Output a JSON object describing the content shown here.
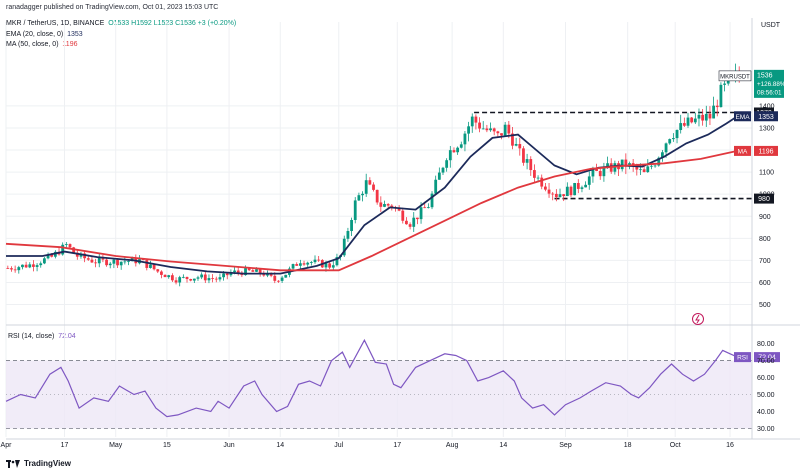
{
  "header": {
    "publisher": "ranadagger published on TradingView.com, Oct 01, 2023 15:03 UTC",
    "symbol": "MKR / TetherUS, 1D, BINANCE",
    "ohlc": "O1533  H1592  L1523  C1536  +3 (+0.20%)",
    "ema_label": "EMA (20, close, 0)",
    "ema_value": "1353",
    "ma_label": "MA (50, close, 0)",
    "ma_value": "1196",
    "currency": "USDT"
  },
  "rsi_header": {
    "label": "RSI (14, close)",
    "value": "72.04"
  },
  "logo_text": "TradingView",
  "colors": {
    "up": "#089981",
    "down": "#f23645",
    "ema": "#1c2a5a",
    "ma": "#e0383e",
    "rsi": "#7e57c2",
    "rsi_band": "#ede7f6",
    "grid": "#eef0f3",
    "ticker_tag": "#2962ff"
  },
  "chart_data": [
    {
      "type": "candlestick",
      "title": "MKR / TetherUS, 1D, BINANCE",
      "ylabel": "USDT",
      "ylim": [
        430,
        1780
      ],
      "y_ticks": [
        500,
        600,
        700,
        800,
        900,
        1000,
        1100,
        1200,
        1300,
        1400
      ],
      "x_ticks": [
        "Apr",
        "17",
        "May",
        "15",
        "Jun",
        "14",
        "Jul",
        "17",
        "Aug",
        "14",
        "Sep",
        "18",
        "Oct",
        "16"
      ],
      "x_tick_days": [
        0,
        16,
        30,
        44,
        61,
        75,
        91,
        107,
        122,
        136,
        153,
        170,
        183,
        198
      ],
      "x_range_days": [
        0,
        204
      ],
      "start_date": "2023-04-01",
      "candles": [],
      "close_path_keypoints_days": [
        [
          0,
          665
        ],
        [
          6,
          680
        ],
        [
          12,
          715
        ],
        [
          16,
          770
        ],
        [
          19,
          720
        ],
        [
          24,
          695
        ],
        [
          30,
          695
        ],
        [
          36,
          700
        ],
        [
          41,
          650
        ],
        [
          46,
          615
        ],
        [
          52,
          625
        ],
        [
          58,
          615
        ],
        [
          61,
          645
        ],
        [
          66,
          650
        ],
        [
          70,
          640
        ],
        [
          73,
          610
        ],
        [
          76,
          640
        ],
        [
          80,
          700
        ],
        [
          84,
          690
        ],
        [
          88,
          675
        ],
        [
          91,
          720
        ],
        [
          95,
          960
        ],
        [
          98,
          1050
        ],
        [
          102,
          950
        ],
        [
          105,
          950
        ],
        [
          110,
          870
        ],
        [
          115,
          950
        ],
        [
          120,
          1180
        ],
        [
          124,
          1250
        ],
        [
          127,
          1340
        ],
        [
          130,
          1300
        ],
        [
          134,
          1260
        ],
        [
          136,
          1300
        ],
        [
          138,
          1250
        ],
        [
          140,
          1180
        ],
        [
          145,
          1070
        ],
        [
          150,
          1000
        ],
        [
          155,
          1025
        ],
        [
          160,
          1090
        ],
        [
          165,
          1120
        ],
        [
          169,
          1135
        ],
        [
          174,
          1090
        ],
        [
          177,
          1150
        ],
        [
          181,
          1270
        ],
        [
          186,
          1320
        ],
        [
          189,
          1340
        ],
        [
          192,
          1350
        ],
        [
          195,
          1460
        ],
        [
          198,
          1520
        ],
        [
          200,
          1536
        ]
      ],
      "overlays": [
        {
          "name": "EMA",
          "label": "EMA",
          "value": "1353",
          "color": "#1c2a5a",
          "points_days": [
            [
              0,
              720
            ],
            [
              10,
              720
            ],
            [
              16,
              740
            ],
            [
              25,
              715
            ],
            [
              35,
              700
            ],
            [
              45,
              670
            ],
            [
              55,
              650
            ],
            [
              65,
              640
            ],
            [
              75,
              640
            ],
            [
              85,
              675
            ],
            [
              91,
              710
            ],
            [
              98,
              860
            ],
            [
              105,
              940
            ],
            [
              112,
              930
            ],
            [
              120,
              1030
            ],
            [
              127,
              1170
            ],
            [
              133,
              1255
            ],
            [
              140,
              1270
            ],
            [
              145,
              1200
            ],
            [
              150,
              1130
            ],
            [
              156,
              1090
            ],
            [
              162,
              1120
            ],
            [
              168,
              1130
            ],
            [
              174,
              1125
            ],
            [
              180,
              1170
            ],
            [
              186,
              1230
            ],
            [
              192,
              1270
            ],
            [
              197,
              1320
            ],
            [
              200,
              1353
            ]
          ]
        },
        {
          "name": "MA",
          "label": "MA",
          "value": "1196",
          "color": "#e0383e",
          "points_days": [
            [
              0,
              775
            ],
            [
              15,
              760
            ],
            [
              30,
              720
            ],
            [
              45,
              695
            ],
            [
              60,
              675
            ],
            [
              75,
              655
            ],
            [
              91,
              655
            ],
            [
              100,
              720
            ],
            [
              110,
              800
            ],
            [
              120,
              880
            ],
            [
              130,
              960
            ],
            [
              140,
              1030
            ],
            [
              150,
              1080
            ],
            [
              160,
              1115
            ],
            [
              170,
              1130
            ],
            [
              180,
              1140
            ],
            [
              190,
              1160
            ],
            [
              200,
              1196
            ]
          ]
        }
      ],
      "horizontal_levels": [
        {
          "value": 1370,
          "label": "1370",
          "start_day": 128,
          "style": "dashed"
        },
        {
          "value": 980,
          "label": "980",
          "start_day": 150,
          "style": "dashed"
        }
      ],
      "price_tag": {
        "label": "MKRUSDT",
        "value": "1536",
        "change": "+126.88%",
        "countdown": "08:56:01"
      },
      "last_close": 1536
    },
    {
      "type": "line",
      "title": "RSI (14, close)",
      "ylim": [
        25,
        88
      ],
      "y_ticks": [
        30.0,
        40.0,
        50.0,
        60.0,
        70.0,
        80.0
      ],
      "y_tick_labels": [
        "30.00",
        "40.00",
        "50.00",
        "60.00",
        "70.00",
        "80.00"
      ],
      "band": [
        30,
        70
      ],
      "mid_line": 50,
      "series": [
        {
          "name": "RSI",
          "color": "#7e57c2",
          "points_days": [
            [
              0,
              46
            ],
            [
              4,
              50
            ],
            [
              8,
              48
            ],
            [
              12,
              62
            ],
            [
              15,
              66
            ],
            [
              17,
              58
            ],
            [
              20,
              42
            ],
            [
              24,
              48
            ],
            [
              28,
              46
            ],
            [
              31,
              55
            ],
            [
              35,
              50
            ],
            [
              38,
              52
            ],
            [
              41,
              42
            ],
            [
              44,
              37
            ],
            [
              47,
              38
            ],
            [
              52,
              42
            ],
            [
              56,
              40
            ],
            [
              58,
              46
            ],
            [
              61,
              42
            ],
            [
              65,
              55
            ],
            [
              68,
              58
            ],
            [
              70,
              50
            ],
            [
              74,
              40
            ],
            [
              77,
              43
            ],
            [
              80,
              56
            ],
            [
              83,
              58
            ],
            [
              86,
              55
            ],
            [
              89,
              70
            ],
            [
              92,
              75
            ],
            [
              94,
              66
            ],
            [
              98,
              82
            ],
            [
              101,
              69
            ],
            [
              104,
              68
            ],
            [
              106,
              56
            ],
            [
              108,
              54
            ],
            [
              112,
              66
            ],
            [
              116,
              70
            ],
            [
              120,
              74
            ],
            [
              123,
              73
            ],
            [
              126,
              70
            ],
            [
              129,
              58
            ],
            [
              132,
              60
            ],
            [
              136,
              64
            ],
            [
              139,
              58
            ],
            [
              141,
              48
            ],
            [
              144,
              42
            ],
            [
              147,
              44
            ],
            [
              150,
              38
            ],
            [
              153,
              44
            ],
            [
              157,
              48
            ],
            [
              160,
              52
            ],
            [
              164,
              57
            ],
            [
              168,
              55
            ],
            [
              171,
              50
            ],
            [
              173,
              48
            ],
            [
              176,
              54
            ],
            [
              179,
              62
            ],
            [
              182,
              68
            ],
            [
              185,
              62
            ],
            [
              188,
              58
            ],
            [
              191,
              62
            ],
            [
              194,
              70
            ],
            [
              196,
              76
            ],
            [
              198,
              74
            ],
            [
              200,
              72.04
            ]
          ]
        }
      ],
      "value_label": "72.04"
    }
  ]
}
